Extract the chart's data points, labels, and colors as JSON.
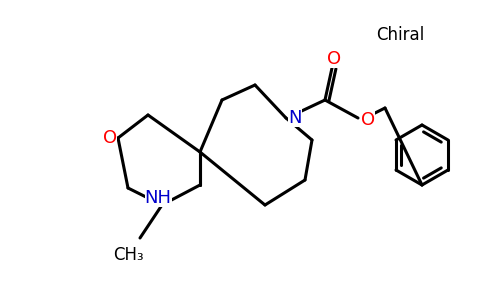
{
  "background_color": "#ffffff",
  "chiral_label": "Chiral",
  "atom_colors": {
    "O": "#ff0000",
    "N": "#0000cc",
    "C": "#000000"
  },
  "line_width": 2.2,
  "font_size_atom": 13,
  "font_size_chiral": 13
}
